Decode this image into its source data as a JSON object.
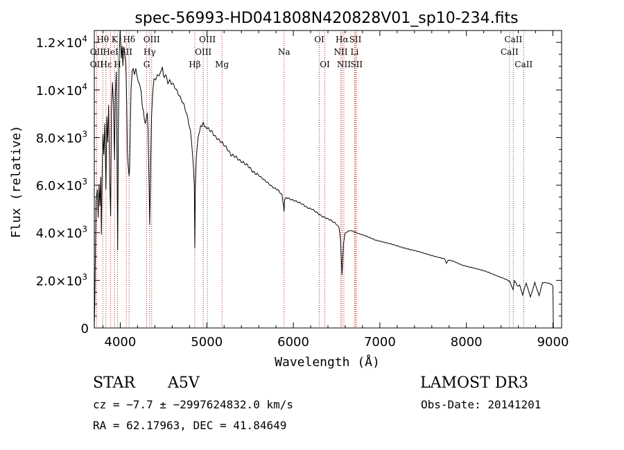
{
  "chart_data": {
    "type": "line",
    "title": "spec-56993-HD041808N420828V01_sp10-234.fits",
    "xlabel": "Wavelength (Å)",
    "ylabel": "Flux (relative)",
    "xlim": [
      3700,
      9100
    ],
    "ylim": [
      0,
      12500
    ],
    "x_ticks": [
      4000,
      5000,
      6000,
      7000,
      8000,
      9000
    ],
    "x_tick_labels": [
      "4000",
      "5000",
      "6000",
      "7000",
      "8000",
      "9000"
    ],
    "y_ticks": [
      0,
      2000,
      4000,
      6000,
      8000,
      10000,
      12000
    ],
    "y_tick_labels": [
      {
        "mantissa": "0",
        "exponent": ""
      },
      {
        "mantissa": "2.0×10",
        "exponent": "3"
      },
      {
        "mantissa": "4.0×10",
        "exponent": "3"
      },
      {
        "mantissa": "6.0×10",
        "exponent": "3"
      },
      {
        "mantissa": "8.0×10",
        "exponent": "3"
      },
      {
        "mantissa": "1.0×10",
        "exponent": "4"
      },
      {
        "mantissa": "1.2×10",
        "exponent": "4"
      }
    ],
    "series": [
      {
        "name": "spectrum",
        "color": "#000000",
        "points": [
          [
            3700,
            0
          ],
          [
            3705,
            800
          ],
          [
            3720,
            5200
          ],
          [
            3735,
            5800
          ],
          [
            3745,
            4600
          ],
          [
            3755,
            6100
          ],
          [
            3765,
            5200
          ],
          [
            3775,
            6300
          ],
          [
            3782,
            3800
          ],
          [
            3792,
            6700
          ],
          [
            3800,
            8100
          ],
          [
            3810,
            7300
          ],
          [
            3822,
            8500
          ],
          [
            3835,
            5800
          ],
          [
            3845,
            8900
          ],
          [
            3855,
            7700
          ],
          [
            3866,
            9300
          ],
          [
            3878,
            6400
          ],
          [
            3889,
            4800
          ],
          [
            3898,
            9000
          ],
          [
            3910,
            10400
          ],
          [
            3922,
            9500
          ],
          [
            3934,
            7000
          ],
          [
            3942,
            9700
          ],
          [
            3955,
            10800
          ],
          [
            3963,
            6900
          ],
          [
            3970,
            3200
          ],
          [
            3978,
            8000
          ],
          [
            3988,
            11300
          ],
          [
            3998,
            12500
          ],
          [
            4005,
            12200
          ],
          [
            4012,
            11400
          ],
          [
            4022,
            11800
          ],
          [
            4030,
            11000
          ],
          [
            4040,
            11700
          ],
          [
            4050,
            11500
          ],
          [
            4060,
            11200
          ],
          [
            4068,
            10600
          ],
          [
            4075,
            9400
          ],
          [
            4082,
            7400
          ],
          [
            4090,
            6800
          ],
          [
            4095,
            6700
          ],
          [
            4102,
            6300
          ],
          [
            4108,
            6700
          ],
          [
            4115,
            8200
          ],
          [
            4125,
            10100
          ],
          [
            4138,
            10800
          ],
          [
            4150,
            11000
          ],
          [
            4165,
            10700
          ],
          [
            4180,
            11000
          ],
          [
            4195,
            10500
          ],
          [
            4210,
            10300
          ],
          [
            4225,
            10100
          ],
          [
            4240,
            10000
          ],
          [
            4255,
            9300
          ],
          [
            4268,
            9000
          ],
          [
            4280,
            8700
          ],
          [
            4290,
            8500
          ],
          [
            4300,
            8800
          ],
          [
            4312,
            9000
          ],
          [
            4322,
            8300
          ],
          [
            4330,
            6500
          ],
          [
            4336,
            5500
          ],
          [
            4340,
            4300
          ],
          [
            4345,
            5300
          ],
          [
            4352,
            6900
          ],
          [
            4362,
            8900
          ],
          [
            4375,
            10000
          ],
          [
            4390,
            10500
          ],
          [
            4410,
            10300
          ],
          [
            4430,
            10700
          ],
          [
            4450,
            10500
          ],
          [
            4470,
            10900
          ],
          [
            4485,
            11000
          ],
          [
            4500,
            10600
          ],
          [
            4520,
            10700
          ],
          [
            4550,
            10400
          ],
          [
            4580,
            10400
          ],
          [
            4620,
            10200
          ],
          [
            4660,
            9900
          ],
          [
            4700,
            9600
          ],
          [
            4740,
            9300
          ],
          [
            4780,
            8800
          ],
          [
            4810,
            8300
          ],
          [
            4830,
            7600
          ],
          [
            4845,
            6800
          ],
          [
            4856,
            5900
          ],
          [
            4862,
            3400
          ],
          [
            4868,
            6000
          ],
          [
            4880,
            7300
          ],
          [
            4900,
            8000
          ],
          [
            4925,
            8400
          ],
          [
            4950,
            8600
          ],
          [
            4975,
            8500
          ],
          [
            5000,
            8400
          ],
          [
            5030,
            8300
          ],
          [
            5060,
            8200
          ],
          [
            5100,
            8000
          ],
          [
            5140,
            7900
          ],
          [
            5180,
            7800
          ],
          [
            5230,
            7600
          ],
          [
            5280,
            7300
          ],
          [
            5330,
            7200
          ],
          [
            5380,
            7000
          ],
          [
            5430,
            6900
          ],
          [
            5480,
            6800
          ],
          [
            5530,
            6600
          ],
          [
            5580,
            6500
          ],
          [
            5640,
            6300
          ],
          [
            5700,
            6100
          ],
          [
            5760,
            5900
          ],
          [
            5820,
            5800
          ],
          [
            5870,
            5600
          ],
          [
            5888,
            5100
          ],
          [
            5893,
            4900
          ],
          [
            5900,
            5400
          ],
          [
            5920,
            5500
          ],
          [
            5980,
            5400
          ],
          [
            6040,
            5300
          ],
          [
            6100,
            5200
          ],
          [
            6160,
            5050
          ],
          [
            6220,
            5000
          ],
          [
            6280,
            4850
          ],
          [
            6330,
            4700
          ],
          [
            6380,
            4600
          ],
          [
            6440,
            4500
          ],
          [
            6500,
            4350
          ],
          [
            6530,
            4200
          ],
          [
            6545,
            3700
          ],
          [
            6555,
            2900
          ],
          [
            6563,
            2200
          ],
          [
            6570,
            2800
          ],
          [
            6580,
            3600
          ],
          [
            6595,
            3950
          ],
          [
            6620,
            4050
          ],
          [
            6660,
            4100
          ],
          [
            6700,
            4050
          ],
          [
            6760,
            3950
          ],
          [
            6850,
            3850
          ],
          [
            6950,
            3700
          ],
          [
            7050,
            3600
          ],
          [
            7150,
            3500
          ],
          [
            7250,
            3400
          ],
          [
            7350,
            3300
          ],
          [
            7450,
            3200
          ],
          [
            7550,
            3100
          ],
          [
            7650,
            3000
          ],
          [
            7750,
            2900
          ],
          [
            7770,
            2700
          ],
          [
            7790,
            2850
          ],
          [
            7850,
            2800
          ],
          [
            7950,
            2650
          ],
          [
            8050,
            2550
          ],
          [
            8150,
            2450
          ],
          [
            8250,
            2350
          ],
          [
            8350,
            2200
          ],
          [
            8450,
            2050
          ],
          [
            8500,
            1950
          ],
          [
            8540,
            1600
          ],
          [
            8555,
            2000
          ],
          [
            8590,
            1750
          ],
          [
            8615,
            1800
          ],
          [
            8650,
            1400
          ],
          [
            8690,
            1900
          ],
          [
            8740,
            1300
          ],
          [
            8790,
            1900
          ],
          [
            8840,
            1350
          ],
          [
            8880,
            1900
          ],
          [
            8930,
            1900
          ],
          [
            8980,
            1850
          ],
          [
            9000,
            1750
          ],
          [
            9005,
            0
          ]
        ]
      }
    ],
    "annotations": [
      {
        "label": "Hθ",
        "x": 3798,
        "row": 0
      },
      {
        "label": "OII",
        "x": 3727,
        "row": 1
      },
      {
        "label": "OII",
        "x": 3727,
        "row": 2
      },
      {
        "label": "Hε",
        "x": 3835,
        "row": 2
      },
      {
        "label": "HeI",
        "x": 3889,
        "row": 1
      },
      {
        "label": "K",
        "x": 3934,
        "row": 0
      },
      {
        "label": "H",
        "x": 3969,
        "row": 2
      },
      {
        "label": "SII",
        "x": 4070,
        "row": 1
      },
      {
        "label": "Hδ",
        "x": 4102,
        "row": 0
      },
      {
        "label": "OIII",
        "x": 4363,
        "row": 0
      },
      {
        "label": "Hγ",
        "x": 4340,
        "row": 1
      },
      {
        "label": "G",
        "x": 4305,
        "row": 2
      },
      {
        "label": "Hβ",
        "x": 4861,
        "row": 2
      },
      {
        "label": "OIII",
        "x": 5007,
        "row": 0
      },
      {
        "label": "OIII",
        "x": 4959,
        "row": 1
      },
      {
        "label": "Mg",
        "x": 5175,
        "row": 2
      },
      {
        "label": "Na",
        "x": 5893,
        "row": 1
      },
      {
        "label": "OI",
        "x": 6300,
        "row": 0
      },
      {
        "label": "OI",
        "x": 6364,
        "row": 2
      },
      {
        "label": "Hα",
        "x": 6563,
        "row": 0
      },
      {
        "label": "NII",
        "x": 6548,
        "row": 1
      },
      {
        "label": "NII",
        "x": 6584,
        "row": 2
      },
      {
        "label": "SII",
        "x": 6717,
        "row": 0
      },
      {
        "label": "Li",
        "x": 6708,
        "row": 1
      },
      {
        "label": "SII",
        "x": 6731,
        "row": 2
      },
      {
        "label": "CaII",
        "x": 8542,
        "row": 0
      },
      {
        "label": "CaII",
        "x": 8498,
        "row": 1
      },
      {
        "label": "CaII",
        "x": 8662,
        "row": 2
      }
    ],
    "line_marker_color": "#b22222",
    "grid": false
  },
  "info": {
    "object_class": "STAR",
    "subclass": "A5V",
    "survey": "LAMOST DR3",
    "cz": "cz = −7.7 ± −2997624832.0 km/s",
    "obs_date": "Obs-Date: 20141201",
    "coords": "RA =  62.17963, DEC =  41.84649"
  }
}
